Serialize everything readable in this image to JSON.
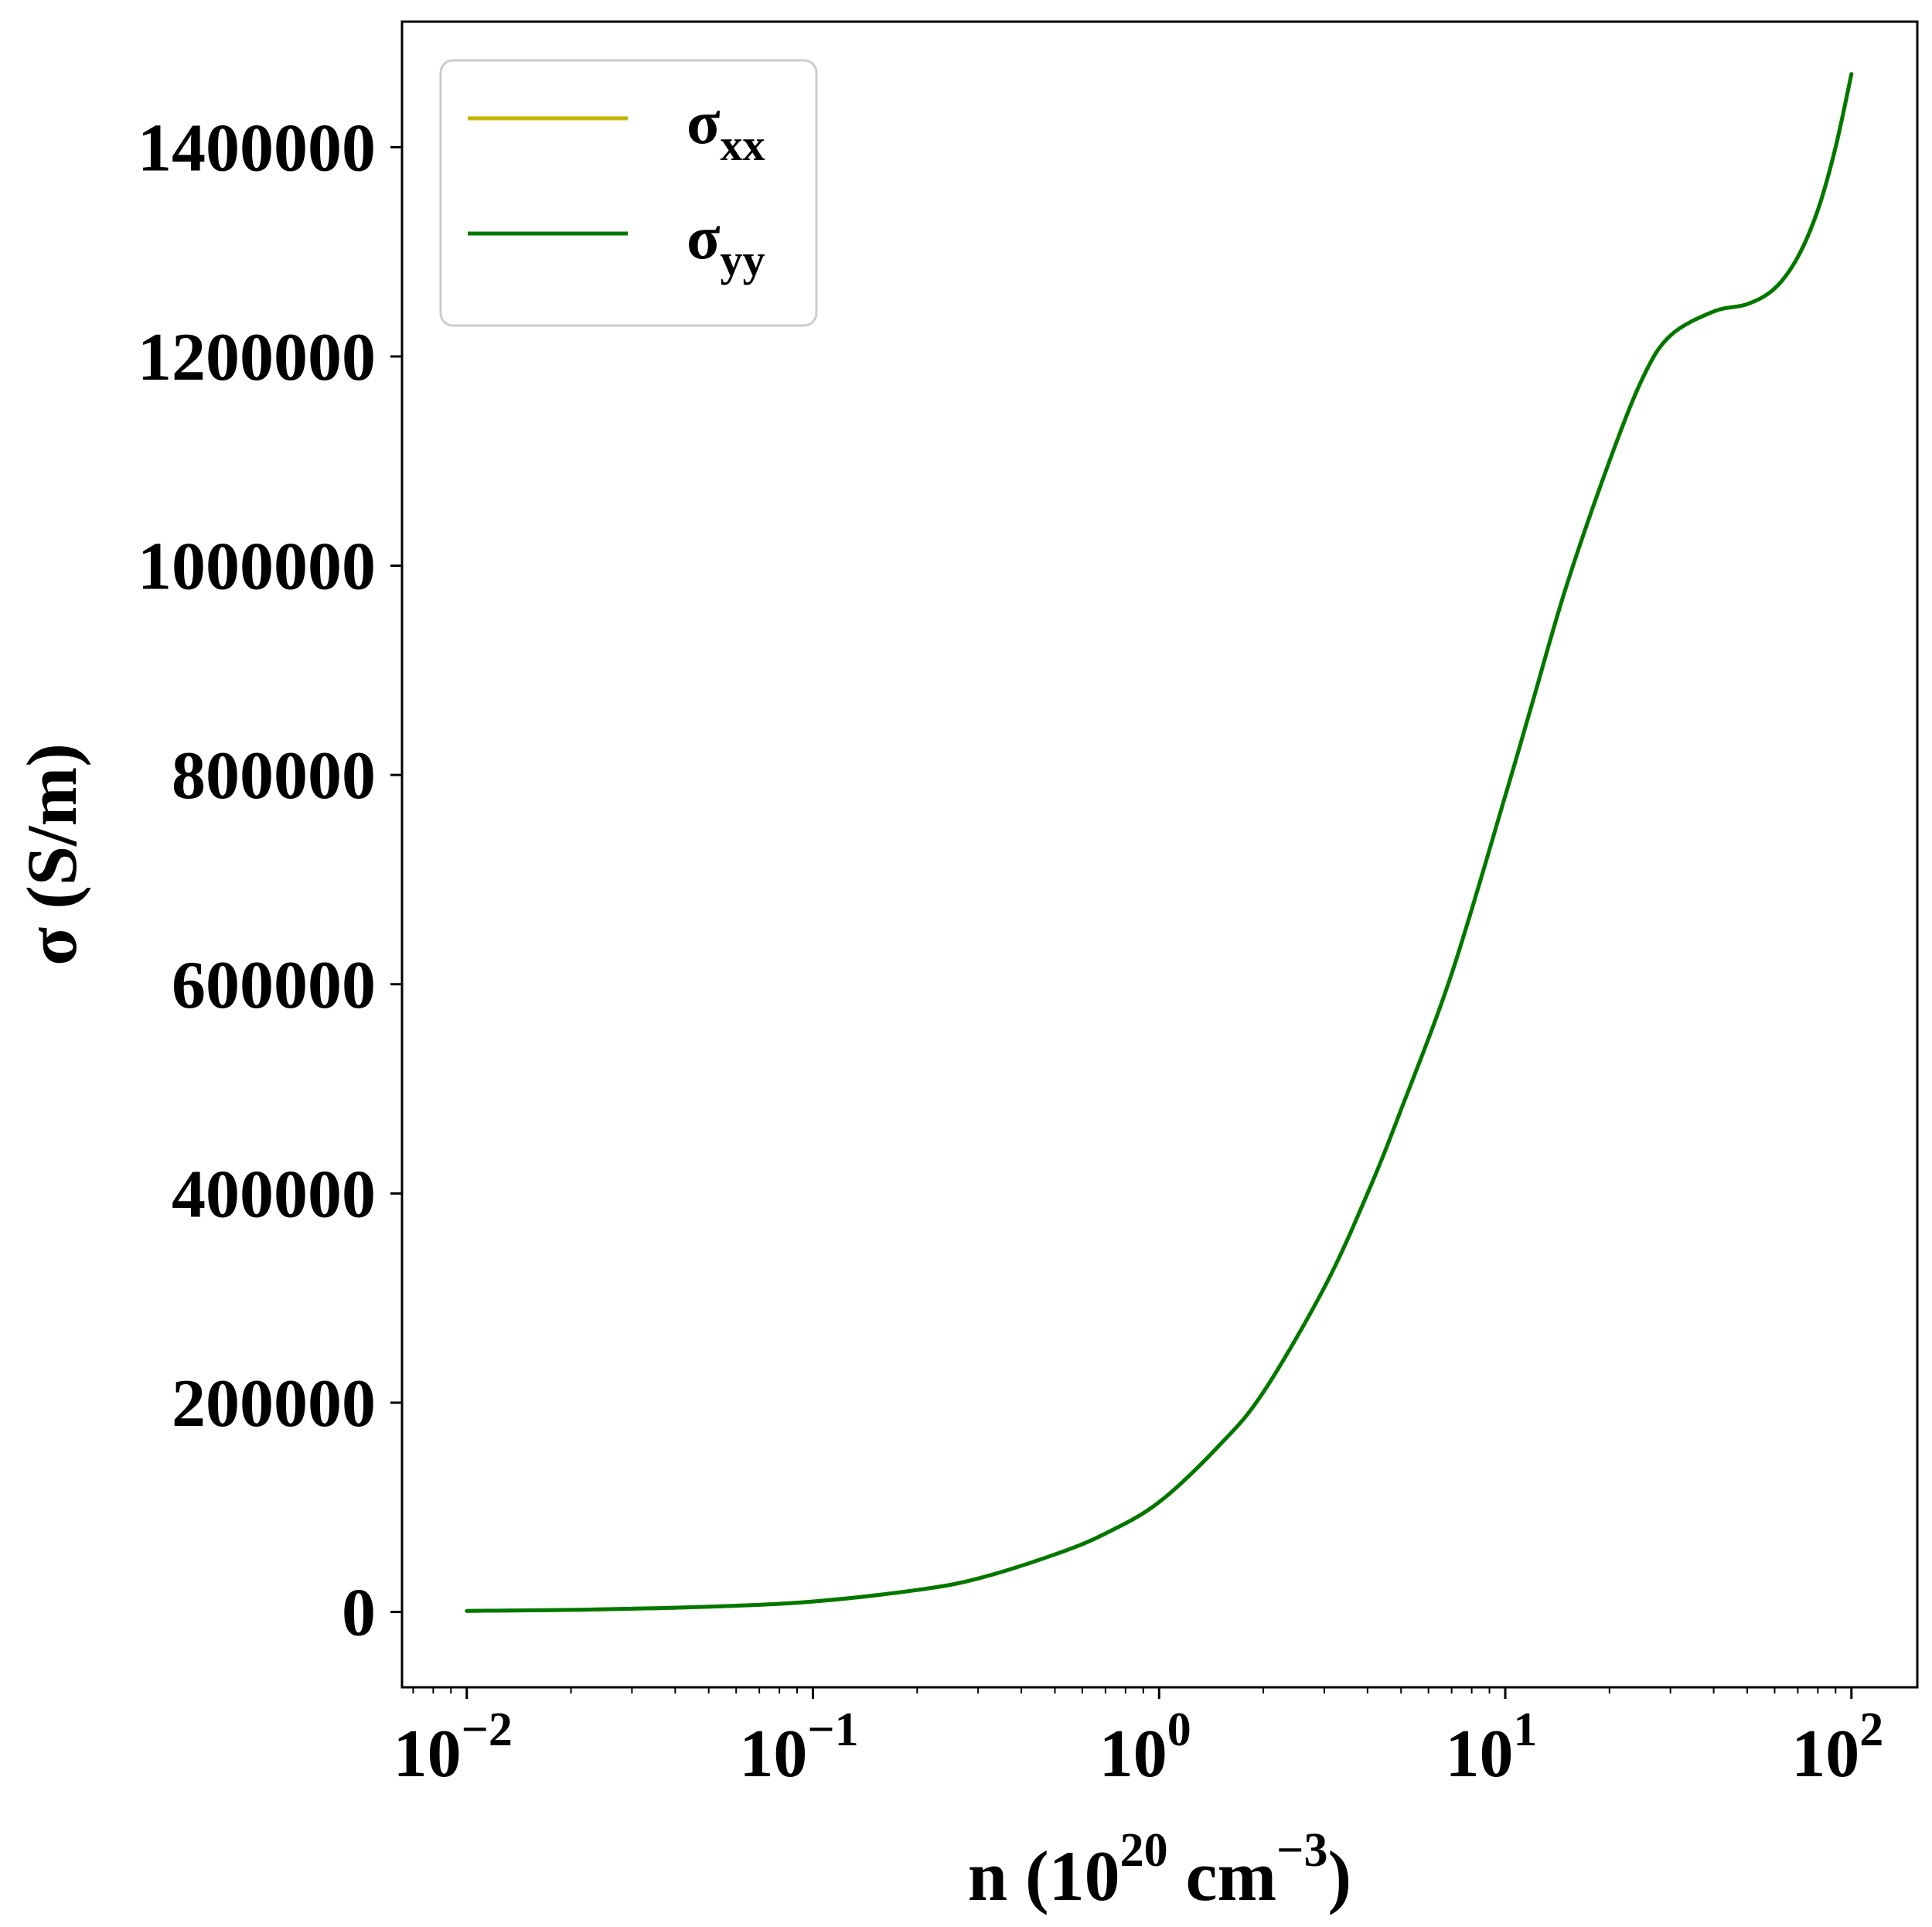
{
  "chart_data": {
    "type": "line",
    "x_scale": "log",
    "xlim": [
      0.0065,
      155
    ],
    "ylim": [
      -72000,
      1520000
    ],
    "xlabel": {
      "base": "n (10",
      "exp1": "20",
      "mid": " cm",
      "exp2": "−3",
      "end": ")"
    },
    "ylabel": "σ (S/m)",
    "x_ticks": [
      {
        "value": 0.01,
        "base": "10",
        "exp": "−2"
      },
      {
        "value": 0.1,
        "base": "10",
        "exp": "−1"
      },
      {
        "value": 1,
        "base": "10",
        "exp": "0"
      },
      {
        "value": 10,
        "base": "10",
        "exp": "1"
      },
      {
        "value": 100,
        "base": "10",
        "exp": "2"
      }
    ],
    "y_ticks": [
      {
        "value": 0,
        "label": "0"
      },
      {
        "value": 200000,
        "label": "200000"
      },
      {
        "value": 400000,
        "label": "400000"
      },
      {
        "value": 600000,
        "label": "600000"
      },
      {
        "value": 800000,
        "label": "800000"
      },
      {
        "value": 1000000,
        "label": "1000000"
      },
      {
        "value": 1200000,
        "label": "1200000"
      },
      {
        "value": 1400000,
        "label": "1400000"
      }
    ],
    "legend_position": "top-left",
    "grid": false,
    "series": [
      {
        "name": "σxx",
        "symbol": "σ",
        "subscript": "xx",
        "color": "#c8b400",
        "x": [
          0.01,
          0.02,
          0.05,
          0.1,
          0.2,
          0.3,
          0.5,
          0.7,
          1,
          1.5,
          2,
          3,
          4,
          5,
          7,
          10,
          12,
          15,
          20,
          25,
          30,
          40,
          50,
          60,
          70,
          80,
          90,
          100
        ],
        "y": [
          1000,
          2000,
          5000,
          10000,
          21000,
          32000,
          55000,
          75000,
          105000,
          160000,
          210000,
          310000,
          400000,
          480000,
          610000,
          780000,
          870000,
          980000,
          1100000,
          1180000,
          1220000,
          1243000,
          1250000,
          1265000,
          1295000,
          1340000,
          1400000,
          1470000
        ]
      },
      {
        "name": "σyy",
        "symbol": "σ",
        "subscript": "yy",
        "color": "#007800",
        "x": [
          0.01,
          0.02,
          0.05,
          0.1,
          0.2,
          0.3,
          0.5,
          0.7,
          1,
          1.5,
          2,
          3,
          4,
          5,
          7,
          10,
          12,
          15,
          20,
          25,
          30,
          40,
          50,
          60,
          70,
          80,
          90,
          100
        ],
        "y": [
          1000,
          2000,
          5000,
          10000,
          21000,
          32000,
          55000,
          75000,
          105000,
          160000,
          210000,
          310000,
          400000,
          480000,
          610000,
          780000,
          870000,
          980000,
          1100000,
          1180000,
          1220000,
          1243000,
          1250000,
          1265000,
          1295000,
          1340000,
          1400000,
          1470000
        ]
      }
    ]
  }
}
